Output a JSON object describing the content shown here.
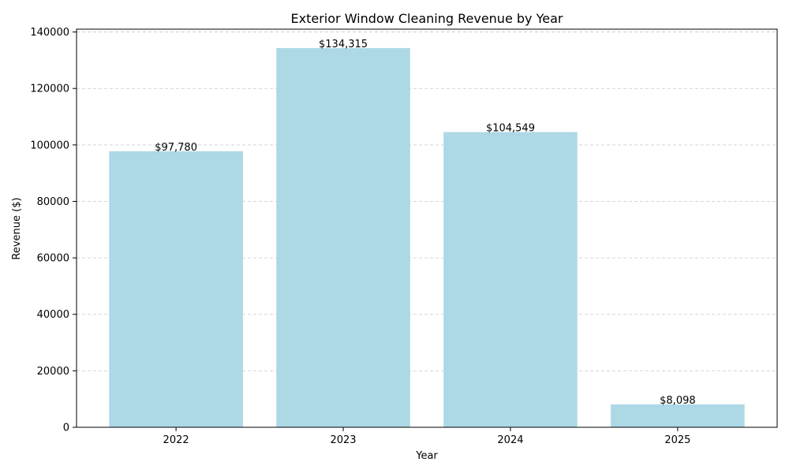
{
  "chart_data": {
    "type": "bar",
    "title": "Exterior Window Cleaning Revenue by Year",
    "xlabel": "Year",
    "ylabel": "Revenue ($)",
    "categories": [
      "2022",
      "2023",
      "2024",
      "2025"
    ],
    "values": [
      97780,
      134315,
      104549,
      8098
    ],
    "data_labels": [
      "$97,780",
      "$134,315",
      "$104,549",
      "$8,098"
    ],
    "ylim": [
      0,
      141000
    ],
    "yticks": [
      0,
      20000,
      40000,
      60000,
      80000,
      100000,
      120000,
      140000
    ],
    "ytick_labels": [
      "0",
      "20000",
      "40000",
      "60000",
      "80000",
      "100000",
      "120000",
      "140000"
    ],
    "grid": "y-dashed",
    "bar_color": "#add8e6"
  }
}
